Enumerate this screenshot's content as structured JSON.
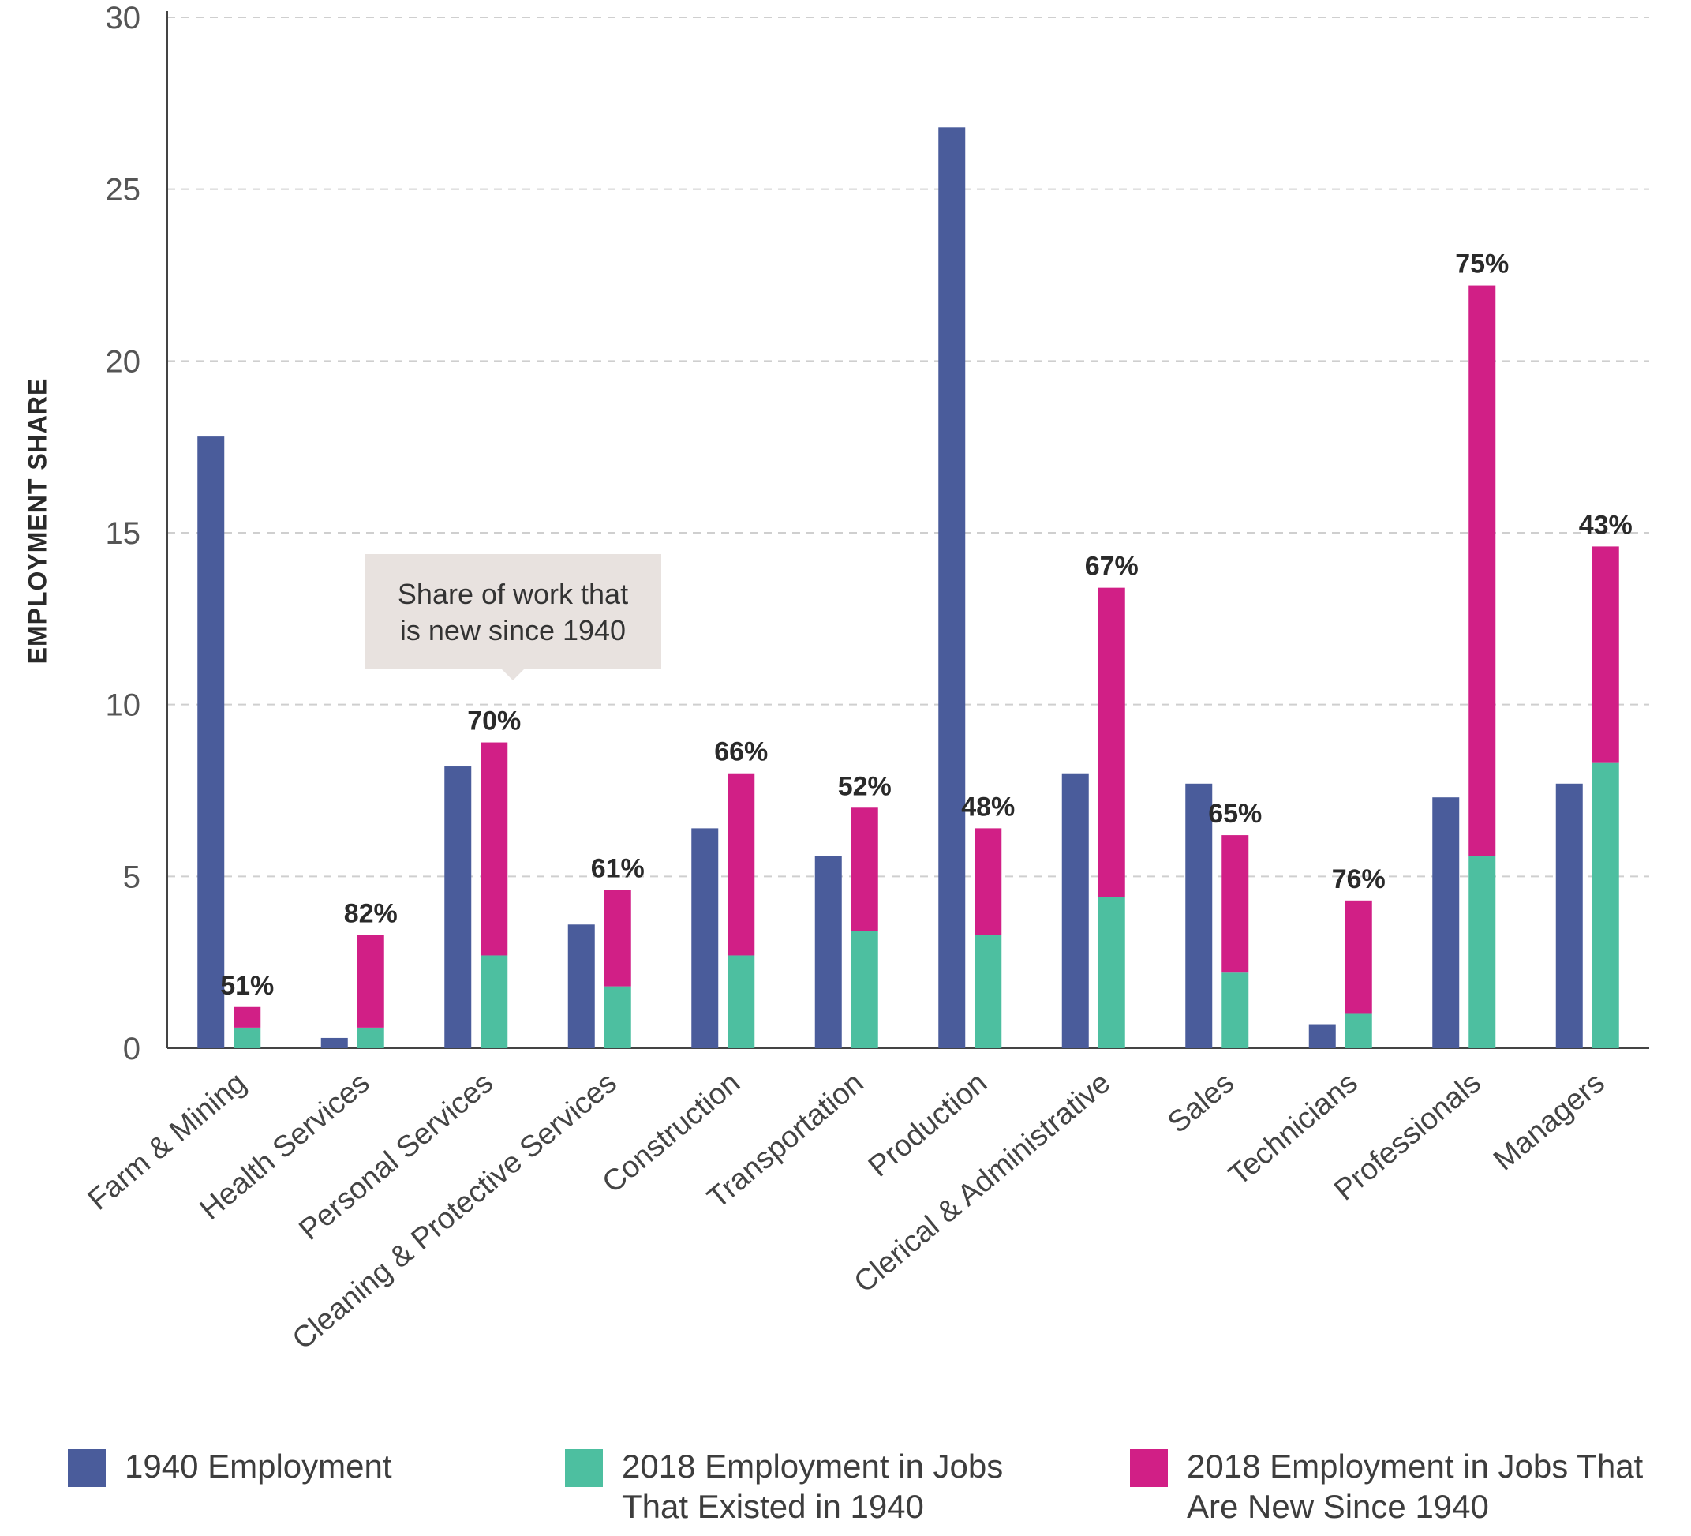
{
  "chart_data": {
    "type": "bar",
    "title": "",
    "xlabel": "",
    "ylabel": "EMPLOYMENT SHARE",
    "ylim": [
      0,
      30
    ],
    "yticks": [
      0,
      5,
      10,
      15,
      20,
      25,
      30
    ],
    "grid": true,
    "legend_position": "bottom",
    "categories": [
      "Farm & Mining",
      "Health Services",
      "Personal Services",
      "Cleaning & Protective Services",
      "Construction",
      "Transportation",
      "Production",
      "Clerical & Administrative",
      "Sales",
      "Technicians",
      "Professionals",
      "Managers"
    ],
    "series": [
      {
        "name": "1940 Employment",
        "color": "#4a5c9b",
        "stack": "1940",
        "values": [
          17.8,
          0.3,
          8.2,
          3.6,
          6.4,
          5.6,
          26.8,
          8.0,
          7.7,
          0.7,
          7.3,
          7.7
        ]
      },
      {
        "name": "2018 Employment in Jobs That Existed in 1940",
        "color": "#4dbfa0",
        "stack": "2018",
        "values": [
          0.6,
          0.6,
          2.7,
          1.8,
          2.7,
          3.4,
          3.3,
          4.4,
          2.2,
          1.0,
          5.6,
          8.3
        ]
      },
      {
        "name": "2018 Employment in Jobs That Are New Since 1940",
        "color": "#d11f86",
        "stack": "2018",
        "values": [
          0.6,
          2.7,
          6.2,
          2.8,
          5.3,
          3.6,
          3.1,
          9.0,
          4.0,
          3.3,
          16.6,
          6.3
        ]
      }
    ],
    "data_labels": [
      "51%",
      "82%",
      "70%",
      "61%",
      "66%",
      "52%",
      "48%",
      "67%",
      "65%",
      "76%",
      "75%",
      "43%"
    ],
    "annotation": "Share of work that\nis new since 1940"
  }
}
